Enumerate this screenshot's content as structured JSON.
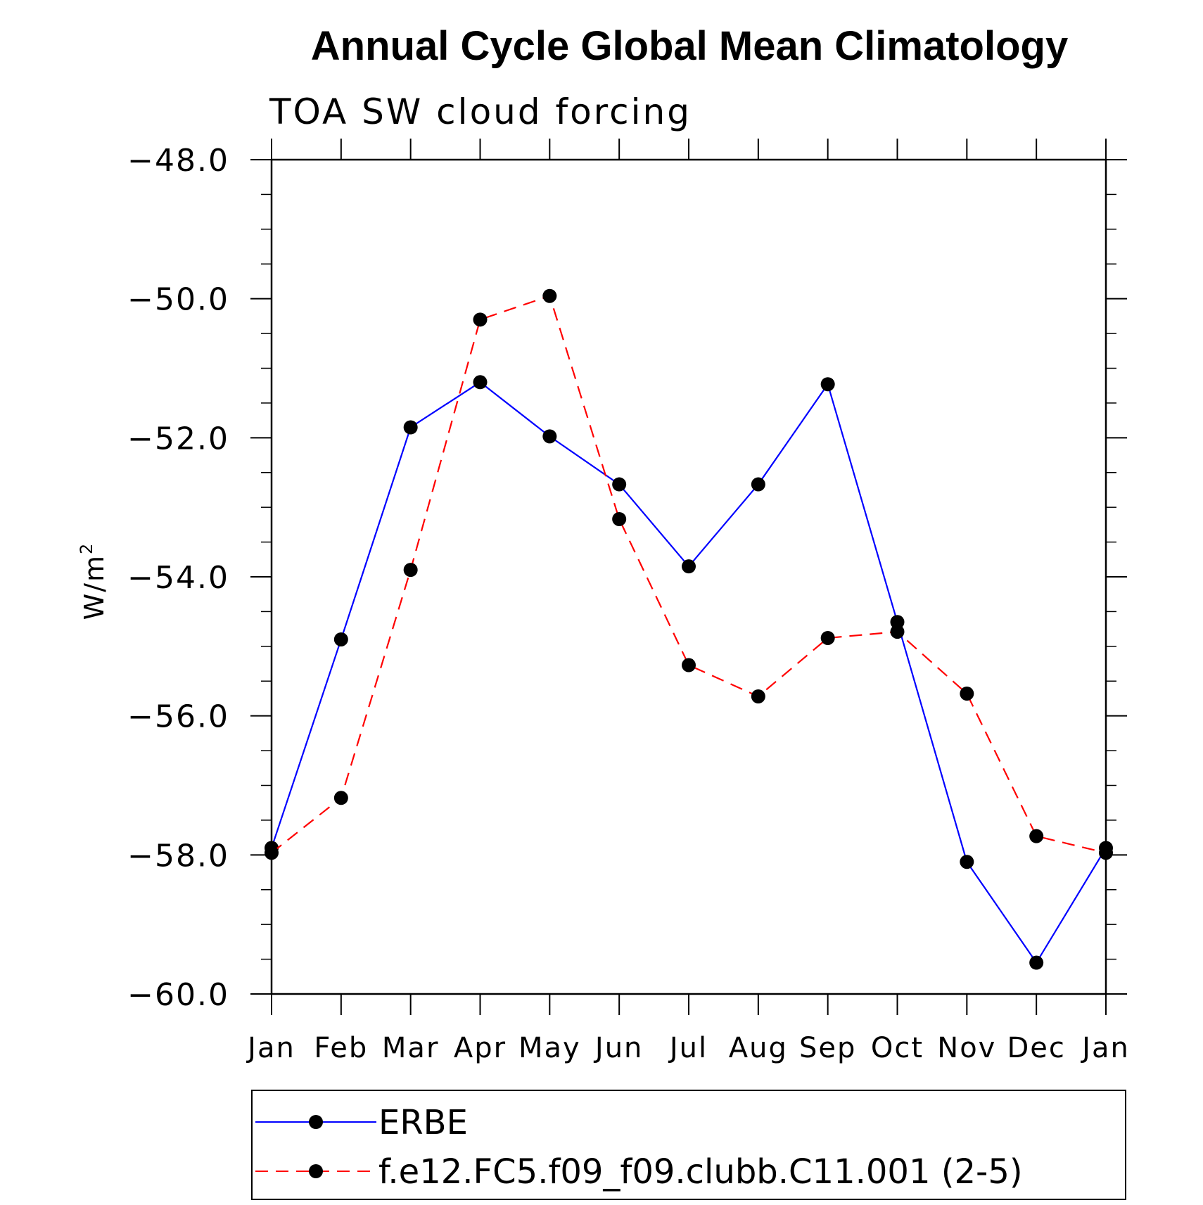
{
  "chart_data": {
    "type": "line",
    "title": "Annual Cycle Global Mean Climatology",
    "subtitle": "TOA SW cloud forcing",
    "xlabel": "",
    "ylabel": "W/m",
    "ylabel_superscript": "2",
    "categories": [
      "Jan",
      "Feb",
      "Mar",
      "Apr",
      "May",
      "Jun",
      "Jul",
      "Aug",
      "Sep",
      "Oct",
      "Nov",
      "Dec",
      "Jan"
    ],
    "ylim": [
      -60.0,
      -48.0
    ],
    "yticks": [
      "-48.0",
      "-50.0",
      "-52.0",
      "-54.0",
      "-56.0",
      "-58.0",
      "-60.0"
    ],
    "ytick_values": [
      -48.0,
      -50.0,
      -52.0,
      -54.0,
      -56.0,
      -58.0,
      -60.0
    ],
    "grid": false,
    "legend_position": "bottom",
    "series": [
      {
        "name": "ERBE",
        "color": "#0000ff",
        "style": "solid",
        "values": [
          -57.9,
          -54.9,
          -51.85,
          -51.2,
          -51.98,
          -52.67,
          -53.85,
          -52.67,
          -51.23,
          -54.65,
          -58.1,
          -59.55,
          -57.9
        ]
      },
      {
        "name": "f.e12.FC5.f09_f09.clubb.C11.001 (2-5)",
        "color": "#ff0000",
        "style": "dashed",
        "values": [
          -57.97,
          -57.18,
          -53.9,
          -50.3,
          -49.96,
          -53.17,
          -55.27,
          -55.72,
          -54.88,
          -54.79,
          -55.68,
          -57.73,
          -57.97
        ]
      }
    ]
  }
}
